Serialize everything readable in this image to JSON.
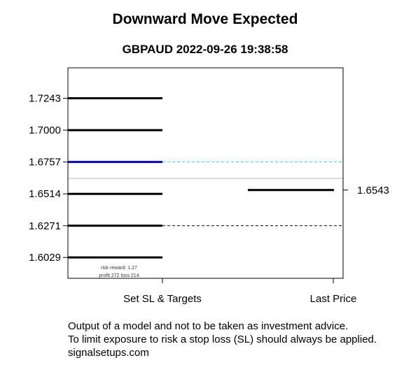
{
  "chart_data": {
    "type": "line",
    "title": "Downward Move Expected",
    "subtitle": "GBPAUD 2022-09-26 19:38:58",
    "categories": [
      "Set SL & Targets",
      "Last Price"
    ],
    "ylim": [
      1.587,
      1.7475
    ],
    "levels": [
      {
        "value": 1.7243,
        "label": "1.7243",
        "role": "stop-loss",
        "color": "#000000"
      },
      {
        "value": 1.7,
        "label": "1.7000",
        "role": "level",
        "color": "#000000"
      },
      {
        "value": 1.6757,
        "label": "1.6757",
        "role": "entry",
        "color": "#0000cc"
      },
      {
        "value": 1.6514,
        "label": "1.6514",
        "role": "target",
        "color": "#000000"
      },
      {
        "value": 1.6271,
        "label": "1.6271",
        "role": "target",
        "color": "#000000"
      },
      {
        "value": 1.6029,
        "label": "1.6029",
        "role": "target",
        "color": "#000000"
      }
    ],
    "last_price": {
      "value": 1.6543,
      "label": "1.6543"
    },
    "reference_lines": [
      {
        "value": 1.6757,
        "style": "dashed",
        "color": "#33ccee"
      },
      {
        "value": 1.6271,
        "style": "dashed",
        "color": "#000000"
      },
      {
        "value": 1.6632,
        "style": "solid",
        "color": "#bbbbbb"
      }
    ],
    "annotations": [
      "risk reward: 1.27",
      "profit 272  loss 214"
    ],
    "grid": false,
    "legend": "none"
  },
  "footer": {
    "line1": "Output of a model and not to be taken as investment advice.",
    "line2": "To limit exposure to risk a stop loss (SL) should always be applied.",
    "line3": "signalsetups.com"
  }
}
